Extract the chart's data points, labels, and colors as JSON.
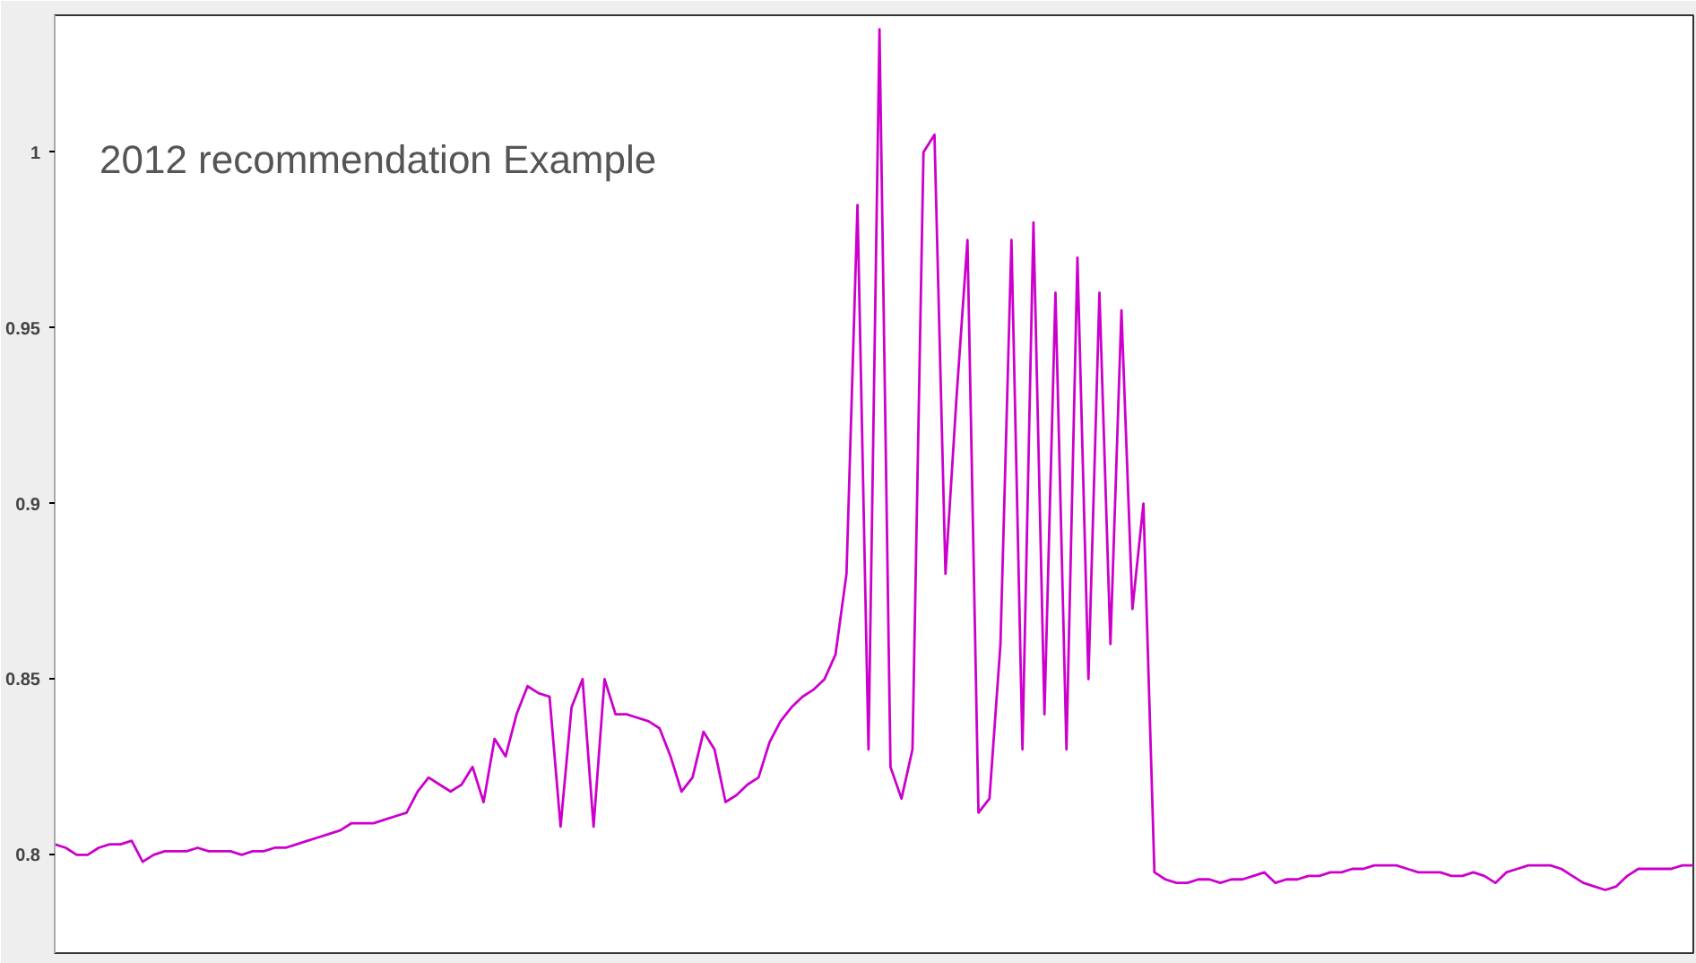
{
  "chart_data": {
    "type": "line",
    "title": "2012 recommendation Example",
    "categories": [
      null,
      null,
      null,
      null,
      null,
      null,
      null,
      null,
      null,
      null,
      null,
      null,
      null,
      null,
      null,
      null,
      null,
      null,
      null,
      null,
      null,
      null,
      null,
      null,
      null,
      null,
      null,
      null,
      null,
      null,
      null,
      null,
      null,
      null,
      null,
      null,
      null,
      null,
      null,
      null,
      null,
      null,
      null,
      null,
      null,
      null,
      null,
      null,
      null,
      null,
      null,
      null,
      null,
      null,
      null,
      null,
      null,
      null,
      null,
      null,
      null,
      null,
      null,
      null,
      null,
      null,
      null,
      null,
      null,
      null,
      null,
      null,
      null,
      null,
      null,
      null,
      null,
      null,
      null,
      null,
      null,
      null,
      null,
      null,
      null,
      null,
      null,
      null,
      null,
      null,
      null,
      null,
      null,
      null,
      null,
      null,
      null,
      null,
      null,
      null,
      null,
      null,
      null,
      null,
      null,
      null,
      null,
      null,
      null,
      null,
      null,
      null,
      null,
      null,
      null,
      null,
      null,
      null,
      null,
      null,
      null,
      null,
      null,
      null,
      null,
      null,
      null,
      null,
      null,
      null,
      null,
      null,
      null,
      null,
      null,
      null,
      null,
      null,
      null,
      null,
      null,
      null,
      null,
      null,
      null,
      null,
      null,
      null,
      null,
      null
    ],
    "series": [
      {
        "color": "#cc00cc",
        "values": [
          0.803,
          0.802,
          0.8,
          0.8,
          0.802,
          0.803,
          0.803,
          0.804,
          0.798,
          0.8,
          0.801,
          0.801,
          0.801,
          0.802,
          0.801,
          0.801,
          0.801,
          0.8,
          0.801,
          0.801,
          0.802,
          0.802,
          0.803,
          0.804,
          0.805,
          0.806,
          0.807,
          0.809,
          0.809,
          0.809,
          0.81,
          0.811,
          0.812,
          0.818,
          0.822,
          0.82,
          0.818,
          0.82,
          0.825,
          0.815,
          0.833,
          0.828,
          0.84,
          0.848,
          0.846,
          0.845,
          0.808,
          0.842,
          0.85,
          0.808,
          0.85,
          0.84,
          0.84,
          0.839,
          0.838,
          0.836,
          0.828,
          0.818,
          0.822,
          0.835,
          0.83,
          0.815,
          0.817,
          0.82,
          0.822,
          0.832,
          0.838,
          0.842,
          0.845,
          0.847,
          0.85,
          0.857,
          0.88,
          0.985,
          0.83,
          1.035,
          0.825,
          0.816,
          0.83,
          1.0,
          1.005,
          0.88,
          0.93,
          0.975,
          0.812,
          0.816,
          0.86,
          0.975,
          0.83,
          0.98,
          0.84,
          0.96,
          0.83,
          0.97,
          0.85,
          0.96,
          0.86,
          0.955,
          0.87,
          0.9,
          0.795,
          0.793,
          0.792,
          0.792,
          0.793,
          0.793,
          0.792,
          0.793,
          0.793,
          0.794,
          0.795,
          0.792,
          0.793,
          0.793,
          0.794,
          0.794,
          0.795,
          0.795,
          0.796,
          0.796,
          0.797,
          0.797,
          0.797,
          0.796,
          0.795,
          0.795,
          0.795,
          0.794,
          0.794,
          0.795,
          0.794,
          0.792,
          0.795,
          0.796,
          0.797,
          0.797,
          0.797,
          0.796,
          0.794,
          0.792,
          0.791,
          0.79,
          0.791,
          0.794,
          0.796,
          0.796,
          0.796,
          0.796,
          0.797,
          0.797
        ]
      }
    ],
    "ylim": [
      0.772,
      1.039
    ],
    "yticks": [
      0.8,
      0.85,
      0.9,
      0.95,
      1
    ],
    "tick_labels": "y",
    "grid": false
  }
}
